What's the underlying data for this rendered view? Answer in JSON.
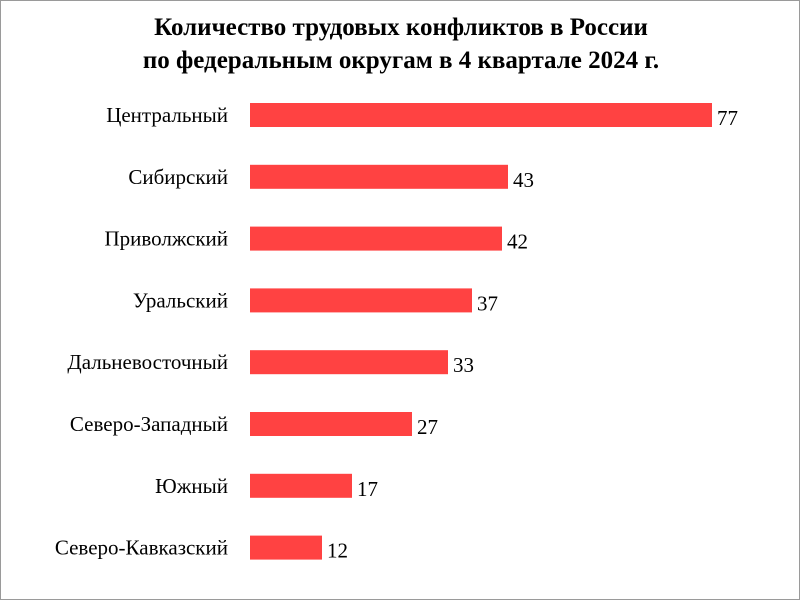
{
  "chart_data": {
    "type": "bar",
    "orientation": "horizontal",
    "title_lines": [
      "Количество трудовых конфликтов в России",
      "по федеральным округам в 4 квартале 2024 г."
    ],
    "categories": [
      "Центральный",
      "Сибирский",
      "Приволжский",
      "Уральский",
      "Дальневосточный",
      "Северо-Западный",
      "Южный",
      "Северо-Кавказский"
    ],
    "values": [
      77,
      43,
      42,
      37,
      33,
      27,
      17,
      12
    ],
    "bar_color": "#ff4242",
    "xlim": [
      0,
      77
    ],
    "grid": false,
    "data_labels": true
  }
}
